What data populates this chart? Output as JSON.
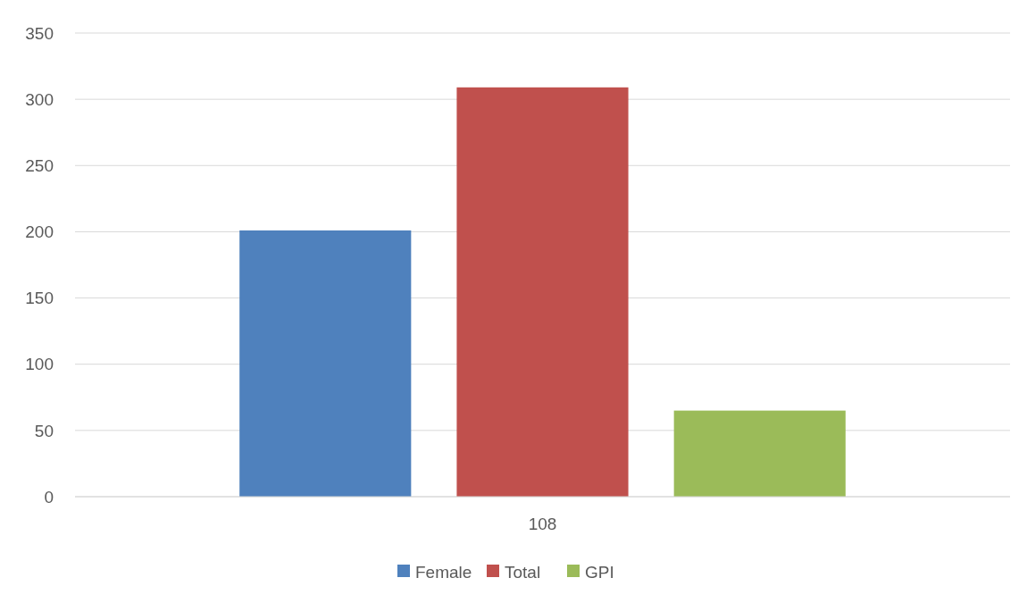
{
  "chart_data": {
    "type": "bar",
    "categories": [
      "108"
    ],
    "series": [
      {
        "name": "Female",
        "color": "#4f81bd",
        "values": [
          201
        ]
      },
      {
        "name": "Total",
        "color": "#c0504d",
        "values": [
          309
        ]
      },
      {
        "name": "GPI",
        "color": "#9bbb59",
        "values": [
          65
        ]
      }
    ],
    "ylim": [
      0,
      350
    ],
    "yticks": [
      0,
      50,
      100,
      150,
      200,
      250,
      300,
      350
    ],
    "grid": "y",
    "legend": "bottom"
  }
}
